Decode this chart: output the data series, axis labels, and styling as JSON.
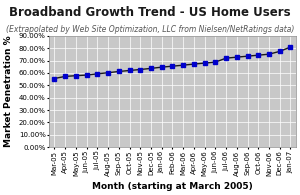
{
  "title": "Broadband Growth Trend - US Home Users",
  "subtitle": "(Extrapolated by Web Site Optimization, LLC from Nielsen/NetRatings data)",
  "xlabel": "Month (starting at March 2005)",
  "ylabel": "Market Penetration %",
  "background_color": "#ffffff",
  "plot_bg_color": "#c8c8c8",
  "x_labels": [
    "Mar-05",
    "Apr-05",
    "May-05",
    "Jun-05",
    "Jul-05",
    "Aug-05",
    "Sep-05",
    "Oct-05",
    "Nov-05",
    "Dec-05",
    "Jan-06",
    "Feb-06",
    "Mar-06",
    "Apr-06",
    "May-06",
    "Jun-06",
    "Jul-06",
    "Aug-06",
    "Sep-06",
    "Oct-06",
    "Nov-06",
    "Dec-06",
    "Jan-07"
  ],
  "y_values": [
    0.555,
    0.572,
    0.578,
    0.583,
    0.593,
    0.602,
    0.612,
    0.62,
    0.628,
    0.637,
    0.647,
    0.655,
    0.663,
    0.672,
    0.68,
    0.688,
    0.72,
    0.728,
    0.736,
    0.744,
    0.752,
    0.775,
    0.81
  ],
  "ylim": [
    0.0,
    0.9
  ],
  "yticks": [
    0.0,
    0.1,
    0.2,
    0.3,
    0.4,
    0.5,
    0.6,
    0.7,
    0.8,
    0.9
  ],
  "line_color": "#1a1a1a",
  "marker_color": "#0000cc",
  "marker": "s",
  "marker_size": 2.5,
  "title_fontsize": 8.5,
  "subtitle_fontsize": 5.5,
  "axis_label_fontsize": 6.5,
  "tick_fontsize": 5
}
